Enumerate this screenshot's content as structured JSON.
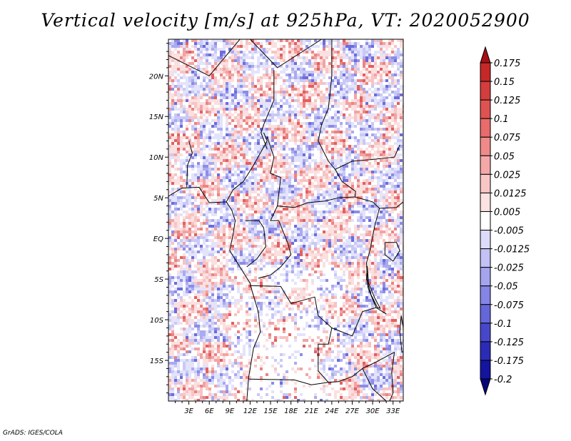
{
  "chart_data": {
    "type": "heatmap",
    "title": "Vertical velocity [m/s] at 925hPa, VT: 2020052900",
    "variable": "Vertical velocity",
    "units": "m/s",
    "level": "925hPa",
    "valid_time": "2020052900",
    "x_ticks": [
      "3E",
      "6E",
      "9E",
      "12E",
      "15E",
      "18E",
      "21E",
      "24E",
      "27E",
      "30E",
      "33E"
    ],
    "y_ticks": [
      "20N",
      "15N",
      "10N",
      "5N",
      "EQ",
      "5S",
      "10S",
      "15S"
    ],
    "lon_range": [
      0,
      34.5
    ],
    "lat_range": [
      -20,
      24.5
    ],
    "x_tick_values": [
      3,
      6,
      9,
      12,
      15,
      18,
      21,
      24,
      27,
      30,
      33
    ],
    "y_tick_values": [
      20,
      15,
      10,
      5,
      0,
      -5,
      -10,
      -15
    ],
    "colorbar": {
      "labels": [
        "0.175",
        "0.15",
        "0.125",
        "0.1",
        "0.075",
        "0.05",
        "0.025",
        "0.0125",
        "0.005",
        "-0.005",
        "-0.0125",
        "-0.025",
        "-0.05",
        "-0.075",
        "-0.1",
        "-0.125",
        "-0.175",
        "-0.2"
      ],
      "colors": [
        "#a50f15",
        "#c62828",
        "#d43d3d",
        "#e05252",
        "#ea6b6b",
        "#f08a8a",
        "#f5a8a8",
        "#f9c6c6",
        "#fde2e2",
        "#ffffff",
        "#dcdcfa",
        "#c2c2f6",
        "#a4a4ef",
        "#8585e6",
        "#6666db",
        "#4747cc",
        "#2b2bb8",
        "#1414a0",
        "#06067a"
      ]
    },
    "credit": "GrADS: IGES/COLA"
  }
}
